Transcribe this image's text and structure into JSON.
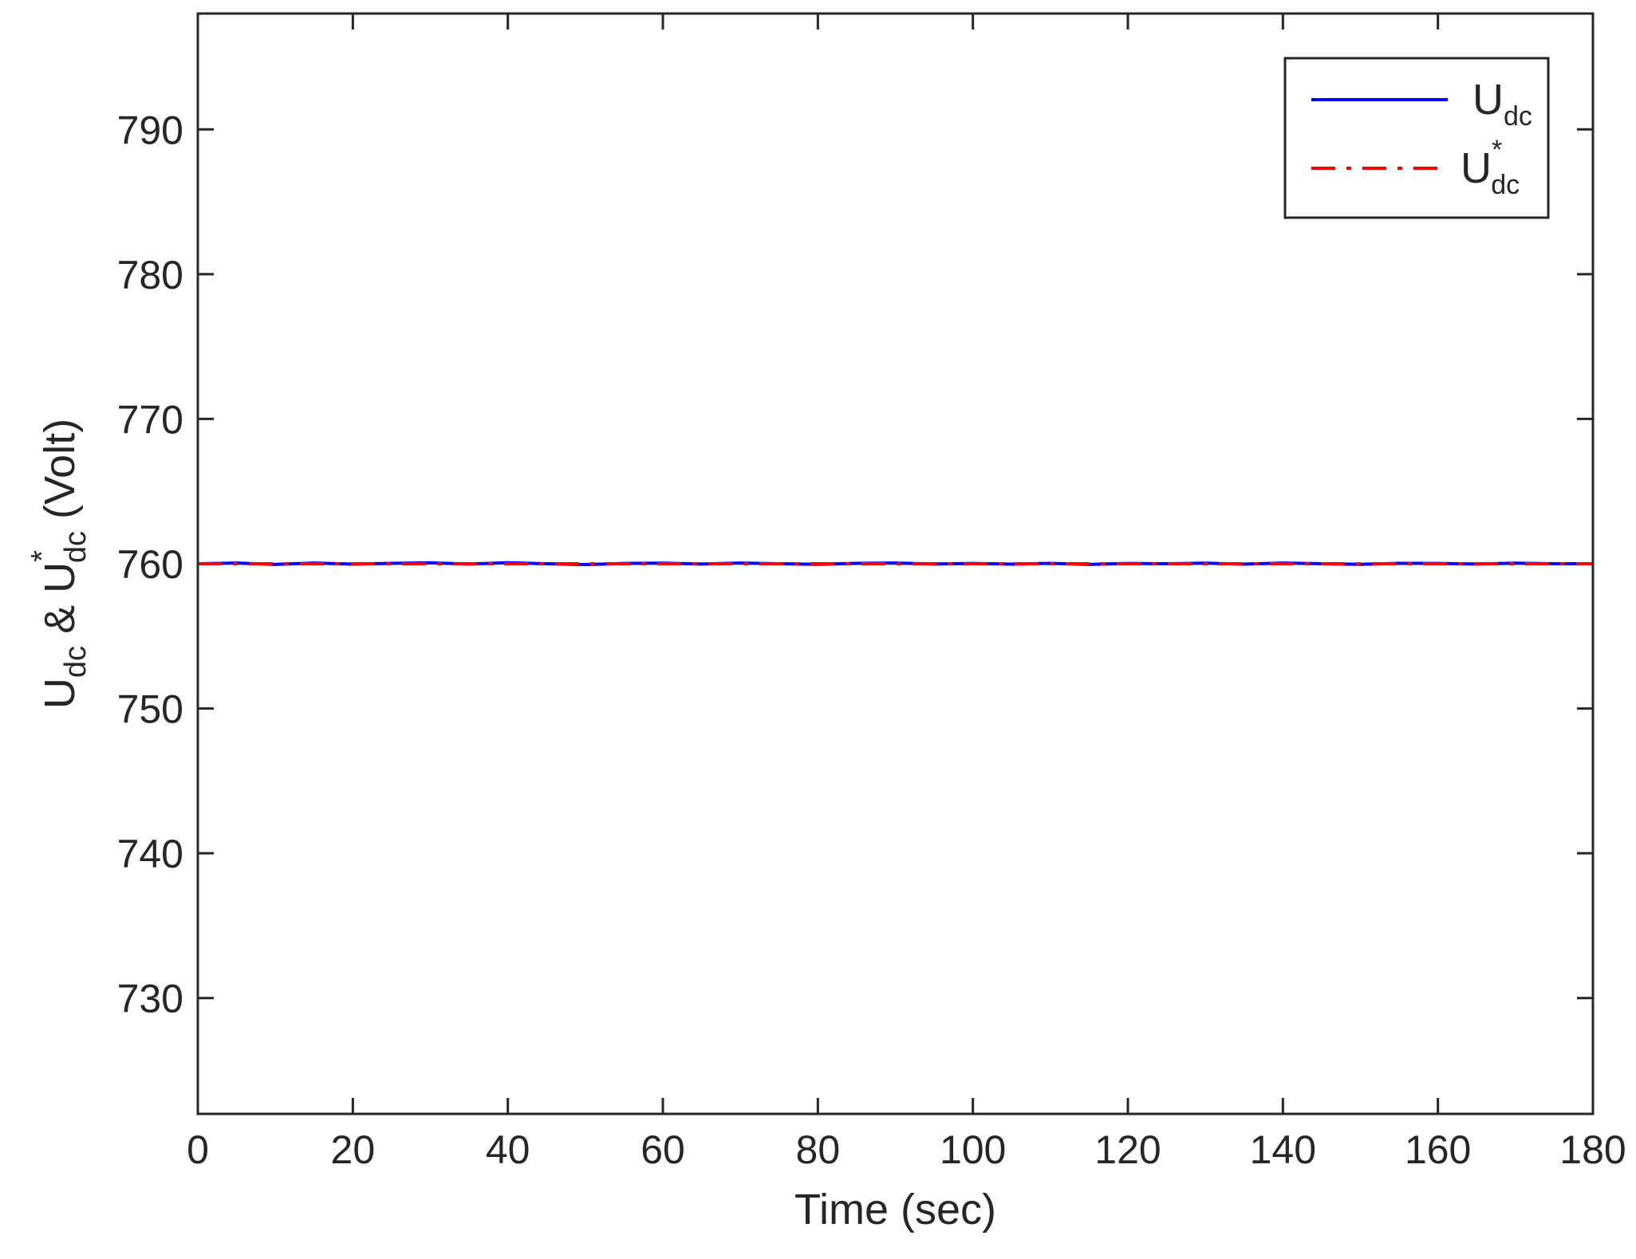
{
  "chart_data": {
    "type": "line",
    "xlabel": "Time (sec)",
    "ylabel": [
      {
        "text": "U"
      },
      {
        "text": "dc",
        "sub": true
      },
      {
        "text": " & U"
      },
      {
        "text": "*",
        "sup": true
      },
      {
        "text": "dc",
        "sub": true
      },
      {
        "text": " (Volt)"
      }
    ],
    "x": [
      0,
      5,
      10,
      15,
      20,
      25,
      30,
      35,
      40,
      45,
      50,
      55,
      60,
      65,
      70,
      75,
      80,
      85,
      90,
      95,
      100,
      105,
      110,
      115,
      120,
      125,
      130,
      135,
      140,
      145,
      150,
      155,
      160,
      165,
      170,
      175,
      180
    ],
    "series": [
      {
        "name": "U",
        "name_sub": "dc",
        "color": "#0000ff",
        "dash": "solid",
        "values": [
          760.0,
          760.05,
          759.95,
          760.05,
          759.97,
          760.03,
          760.06,
          759.98,
          760.07,
          760.0,
          759.94,
          760.02,
          760.04,
          759.98,
          760.05,
          760.0,
          759.96,
          760.03,
          760.05,
          759.98,
          760.02,
          759.97,
          760.03,
          759.95,
          760.02,
          760.0,
          760.04,
          759.97,
          760.05,
          760.0,
          759.96,
          760.03,
          760.02,
          759.98,
          760.04,
          760.0,
          760.0
        ]
      },
      {
        "name": "U",
        "name_sub": "dc",
        "name_sup": "*",
        "color": "#ff0000",
        "dash": "dashdot",
        "values": [
          760,
          760,
          760,
          760,
          760,
          760,
          760,
          760,
          760,
          760,
          760,
          760,
          760,
          760,
          760,
          760,
          760,
          760,
          760,
          760,
          760,
          760,
          760,
          760,
          760,
          760,
          760,
          760,
          760,
          760,
          760,
          760,
          760,
          760,
          760,
          760,
          760
        ]
      }
    ],
    "xlim": [
      0,
      180
    ],
    "xticks": [
      0,
      20,
      40,
      60,
      80,
      100,
      120,
      140,
      160,
      180
    ],
    "ylim": [
      722,
      798
    ],
    "yticks": [
      730,
      740,
      750,
      760,
      770,
      780,
      790
    ],
    "grid": false,
    "legend": "upper right"
  }
}
